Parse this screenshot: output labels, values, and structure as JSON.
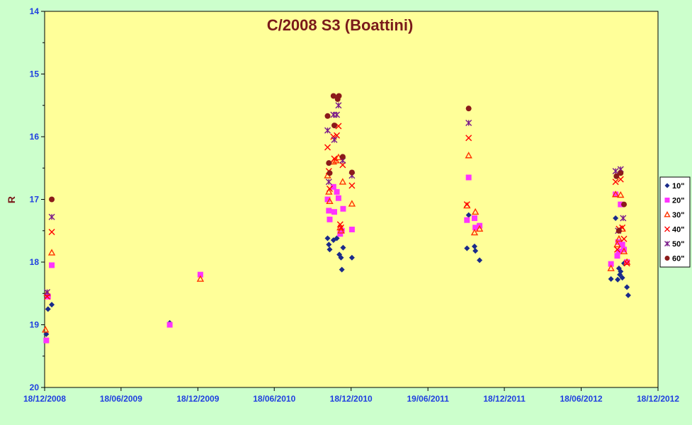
{
  "chart_data": {
    "type": "scatter",
    "title": "C/2008 S3 (Boattini)",
    "ylabel": "R",
    "xlabel": "",
    "x_ticks": [
      "18/12/2008",
      "18/06/2009",
      "18/12/2009",
      "18/06/2010",
      "18/12/2010",
      "19/06/2011",
      "18/12/2011",
      "18/06/2012",
      "18/12/2012"
    ],
    "xlim": [
      "2008-12-18",
      "2012-12-18"
    ],
    "y_ticks": [
      "14",
      "15",
      "16",
      "17",
      "18",
      "19",
      "20"
    ],
    "ylim": [
      14,
      20
    ],
    "y_inverted": true,
    "grid": false,
    "legend_position": "right",
    "colors": {
      "plot_bg": "#ffff99",
      "page_bg": "#ccffcc",
      "tick_text": "#1f3fe0",
      "title_text": "#7a1a1a"
    },
    "series": [
      {
        "name": "10\"",
        "marker": "diamond",
        "color": "#1a2a8a",
        "points": [
          [
            "2008-12-22",
            19.15
          ],
          [
            "2008-12-26",
            18.75
          ],
          [
            "2009-01-04",
            18.68
          ],
          [
            "2009-10-12",
            18.97
          ],
          [
            "2010-10-23",
            17.62
          ],
          [
            "2010-10-26",
            17.72
          ],
          [
            "2010-10-28",
            17.8
          ],
          [
            "2010-11-06",
            17.65
          ],
          [
            "2010-11-14",
            17.62
          ],
          [
            "2010-11-20",
            17.88
          ],
          [
            "2010-11-24",
            17.93
          ],
          [
            "2010-11-26",
            18.12
          ],
          [
            "2010-11-29",
            17.77
          ],
          [
            "2010-12-20",
            17.93
          ],
          [
            "2011-09-20",
            17.78
          ],
          [
            "2011-09-24",
            17.25
          ],
          [
            "2011-10-08",
            17.75
          ],
          [
            "2011-10-10",
            17.82
          ],
          [
            "2011-10-20",
            17.97
          ],
          [
            "2012-08-28",
            18.27
          ],
          [
            "2012-09-08",
            17.3
          ],
          [
            "2012-09-13",
            18.28
          ],
          [
            "2012-09-16",
            18.1
          ],
          [
            "2012-09-18",
            18.2
          ],
          [
            "2012-09-20",
            18.15
          ],
          [
            "2012-09-24",
            18.25
          ],
          [
            "2012-09-28",
            18.02
          ],
          [
            "2012-10-05",
            18.4
          ],
          [
            "2012-10-08",
            18.53
          ]
        ]
      },
      {
        "name": "20\"",
        "marker": "square",
        "color": "#ff33ff",
        "points": [
          [
            "2008-12-22",
            19.25
          ],
          [
            "2008-12-26",
            18.55
          ],
          [
            "2009-01-04",
            18.05
          ],
          [
            "2009-10-12",
            19.0
          ],
          [
            "2009-12-24",
            18.2
          ],
          [
            "2010-10-23",
            17.0
          ],
          [
            "2010-10-26",
            17.18
          ],
          [
            "2010-10-28",
            17.32
          ],
          [
            "2010-11-06",
            16.8
          ],
          [
            "2010-11-08",
            17.2
          ],
          [
            "2010-11-14",
            16.88
          ],
          [
            "2010-11-18",
            16.98
          ],
          [
            "2010-11-22",
            17.55
          ],
          [
            "2010-11-26",
            17.5
          ],
          [
            "2010-11-29",
            17.15
          ],
          [
            "2010-12-20",
            17.48
          ],
          [
            "2011-09-20",
            17.33
          ],
          [
            "2011-09-24",
            16.65
          ],
          [
            "2011-10-08",
            17.3
          ],
          [
            "2011-10-10",
            17.45
          ],
          [
            "2011-10-20",
            17.42
          ],
          [
            "2012-08-28",
            18.03
          ],
          [
            "2012-09-08",
            16.92
          ],
          [
            "2012-09-12",
            17.9
          ],
          [
            "2012-09-14",
            17.68
          ],
          [
            "2012-09-16",
            17.83
          ],
          [
            "2012-09-20",
            17.08
          ],
          [
            "2012-09-24",
            17.72
          ],
          [
            "2012-09-28",
            17.8
          ],
          [
            "2012-10-05",
            18.0
          ]
        ]
      },
      {
        "name": "30\"",
        "marker": "triangle",
        "color": "#ff3300",
        "points": [
          [
            "2008-12-20",
            19.08
          ],
          [
            "2008-12-24",
            18.5
          ],
          [
            "2009-01-04",
            17.85
          ],
          [
            "2009-12-24",
            18.27
          ],
          [
            "2010-10-23",
            16.62
          ],
          [
            "2010-10-26",
            16.88
          ],
          [
            "2010-10-28",
            17.03
          ],
          [
            "2010-11-06",
            16.4
          ],
          [
            "2010-11-12",
            16.38
          ],
          [
            "2010-11-18",
            16.33
          ],
          [
            "2010-11-22",
            17.45
          ],
          [
            "2010-11-24",
            17.5
          ],
          [
            "2010-11-28",
            16.72
          ],
          [
            "2010-12-20",
            17.07
          ],
          [
            "2011-09-20",
            17.1
          ],
          [
            "2011-09-24",
            16.3
          ],
          [
            "2011-10-08",
            17.53
          ],
          [
            "2011-10-10",
            17.2
          ],
          [
            "2011-10-20",
            17.47
          ],
          [
            "2012-08-28",
            18.1
          ],
          [
            "2012-09-08",
            16.92
          ],
          [
            "2012-09-12",
            17.72
          ],
          [
            "2012-09-16",
            17.63
          ],
          [
            "2012-09-20",
            16.93
          ],
          [
            "2012-09-24",
            17.47
          ],
          [
            "2012-09-28",
            17.83
          ],
          [
            "2012-10-05",
            18.0
          ]
        ]
      },
      {
        "name": "40\"",
        "marker": "x",
        "color": "#ff0000",
        "points": [
          [
            "2008-12-24",
            18.55
          ],
          [
            "2009-01-04",
            17.52
          ],
          [
            "2010-10-23",
            16.17
          ],
          [
            "2010-10-26",
            16.55
          ],
          [
            "2010-10-28",
            16.83
          ],
          [
            "2010-11-06",
            16.0
          ],
          [
            "2010-11-08",
            16.35
          ],
          [
            "2010-11-14",
            15.98
          ],
          [
            "2010-11-18",
            15.83
          ],
          [
            "2010-11-22",
            17.4
          ],
          [
            "2010-11-24",
            17.45
          ],
          [
            "2010-11-28",
            16.45
          ],
          [
            "2010-12-20",
            16.78
          ],
          [
            "2011-09-20",
            17.08
          ],
          [
            "2011-09-24",
            16.02
          ],
          [
            "2012-09-08",
            16.72
          ],
          [
            "2012-09-12",
            17.8
          ],
          [
            "2012-09-16",
            17.47
          ],
          [
            "2012-09-20",
            16.68
          ],
          [
            "2012-09-24",
            17.45
          ],
          [
            "2012-09-28",
            17.63
          ],
          [
            "2012-10-05",
            18.02
          ]
        ]
      },
      {
        "name": "50\"",
        "marker": "asterisk",
        "color": "#7a1a8a",
        "points": [
          [
            "2008-12-24",
            18.48
          ],
          [
            "2009-01-04",
            17.28
          ],
          [
            "2010-10-23",
            15.9
          ],
          [
            "2010-10-26",
            16.72
          ],
          [
            "2010-11-06",
            15.65
          ],
          [
            "2010-11-08",
            16.05
          ],
          [
            "2010-11-14",
            15.65
          ],
          [
            "2010-11-18",
            15.5
          ],
          [
            "2010-11-28",
            16.38
          ],
          [
            "2010-12-20",
            16.62
          ],
          [
            "2011-09-24",
            15.78
          ],
          [
            "2012-09-08",
            16.55
          ],
          [
            "2012-09-14",
            17.5
          ],
          [
            "2012-09-20",
            16.52
          ],
          [
            "2012-09-26",
            17.3
          ]
        ]
      },
      {
        "name": "60\"",
        "marker": "circle",
        "color": "#8b1a1a",
        "points": [
          [
            "2009-01-04",
            17.0
          ],
          [
            "2010-10-23",
            15.67
          ],
          [
            "2010-10-26",
            16.42
          ],
          [
            "2010-10-28",
            16.58
          ],
          [
            "2010-11-06",
            15.35
          ],
          [
            "2010-11-08",
            15.82
          ],
          [
            "2010-11-16",
            15.4
          ],
          [
            "2010-11-19",
            15.35
          ],
          [
            "2010-11-28",
            16.32
          ],
          [
            "2010-12-20",
            16.57
          ],
          [
            "2011-09-24",
            15.55
          ],
          [
            "2012-09-10",
            16.63
          ],
          [
            "2012-09-16",
            17.5
          ],
          [
            "2012-09-20",
            16.58
          ],
          [
            "2012-09-28",
            17.08
          ]
        ]
      }
    ]
  }
}
